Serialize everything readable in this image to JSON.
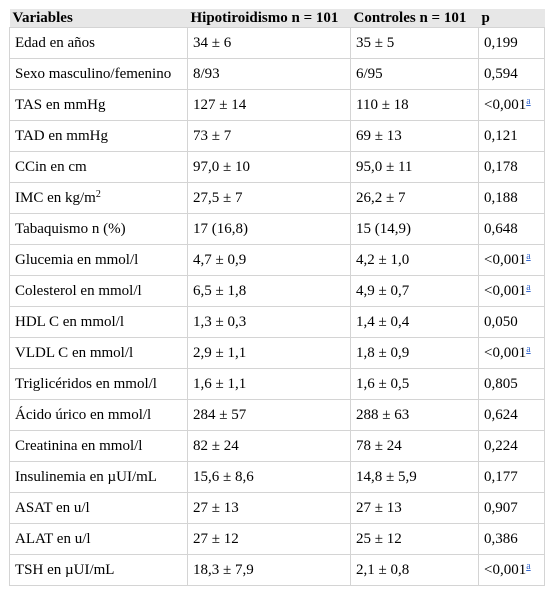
{
  "header": [
    "Variables",
    "Hipotiroidismo n = 101",
    "Controles n = 101",
    "p"
  ],
  "rows": [
    {
      "variable": "Edad en años",
      "sup": "",
      "hipo": "34 ± 6",
      "control": "35 ± 5",
      "p": "0,199",
      "note": ""
    },
    {
      "variable": "Sexo masculino/femenino",
      "sup": "",
      "hipo": "8/93",
      "control": "6/95",
      "p": "0,594",
      "note": ""
    },
    {
      "variable": "TAS en mmHg",
      "sup": "",
      "hipo": "127 ± 14",
      "control": "110 ± 18",
      "p": "<0,001",
      "note": "a"
    },
    {
      "variable": "TAD en mmHg",
      "sup": "",
      "hipo": "73 ± 7",
      "control": "69 ± 13",
      "p": "0,121",
      "note": ""
    },
    {
      "variable": "CCin en cm",
      "sup": "",
      "hipo": "97,0 ± 10",
      "control": "95,0 ± 11",
      "p": "0,178",
      "note": ""
    },
    {
      "variable": "IMC en kg/m",
      "sup": "2",
      "hipo": "27,5 ± 7",
      "control": "26,2 ± 7",
      "p": "0,188",
      "note": ""
    },
    {
      "variable": "Tabaquismo n (%)",
      "sup": "",
      "hipo": "17 (16,8)",
      "control": "15 (14,9)",
      "p": "0,648",
      "note": ""
    },
    {
      "variable": "Glucemia en mmol/l",
      "sup": "",
      "hipo": "4,7 ± 0,9",
      "control": "4,2 ± 1,0",
      "p": "<0,001",
      "note": "a"
    },
    {
      "variable": "Colesterol en mmol/l",
      "sup": "",
      "hipo": "6,5 ± 1,8",
      "control": "4,9 ± 0,7",
      "p": "<0,001",
      "note": "a"
    },
    {
      "variable": "HDL C en mmol/l",
      "sup": "",
      "hipo": "1,3 ± 0,3",
      "control": "1,4 ± 0,4",
      "p": "0,050",
      "note": ""
    },
    {
      "variable": "VLDL C en mmol/l",
      "sup": "",
      "hipo": "2,9 ± 1,1",
      "control": "1,8 ± 0,9",
      "p": "<0,001",
      "note": "a"
    },
    {
      "variable": "Triglicéridos en mmol/l",
      "sup": "",
      "hipo": "1,6 ± 1,1",
      "control": "1,6 ± 0,5",
      "p": "0,805",
      "note": ""
    },
    {
      "variable": "Ácido úrico en mmol/l",
      "sup": "",
      "hipo": "284 ± 57",
      "control": "288 ± 63",
      "p": "0,624",
      "note": ""
    },
    {
      "variable": "Creatinina en mmol/l",
      "sup": "",
      "hipo": "82 ± 24",
      "control": "78 ± 24",
      "p": "0,224",
      "note": ""
    },
    {
      "variable": "Insulinemia en µUI/mL",
      "sup": "",
      "hipo": "15,6 ± 8,6",
      "control": "14,8 ± 5,9",
      "p": "0,177",
      "note": ""
    },
    {
      "variable": "ASAT en u/l",
      "sup": "",
      "hipo": "27 ± 13",
      "control": "27 ± 13",
      "p": "0,907",
      "note": ""
    },
    {
      "variable": "ALAT en u/l",
      "sup": "",
      "hipo": "27 ± 12",
      "control": "25 ± 12",
      "p": "0,386",
      "note": ""
    },
    {
      "variable": "TSH en µUI/mL",
      "sup": "",
      "hipo": "18,3 ± 7,9",
      "control": "2,1 ± 0,8",
      "p": "<0,001",
      "note": "a"
    }
  ]
}
